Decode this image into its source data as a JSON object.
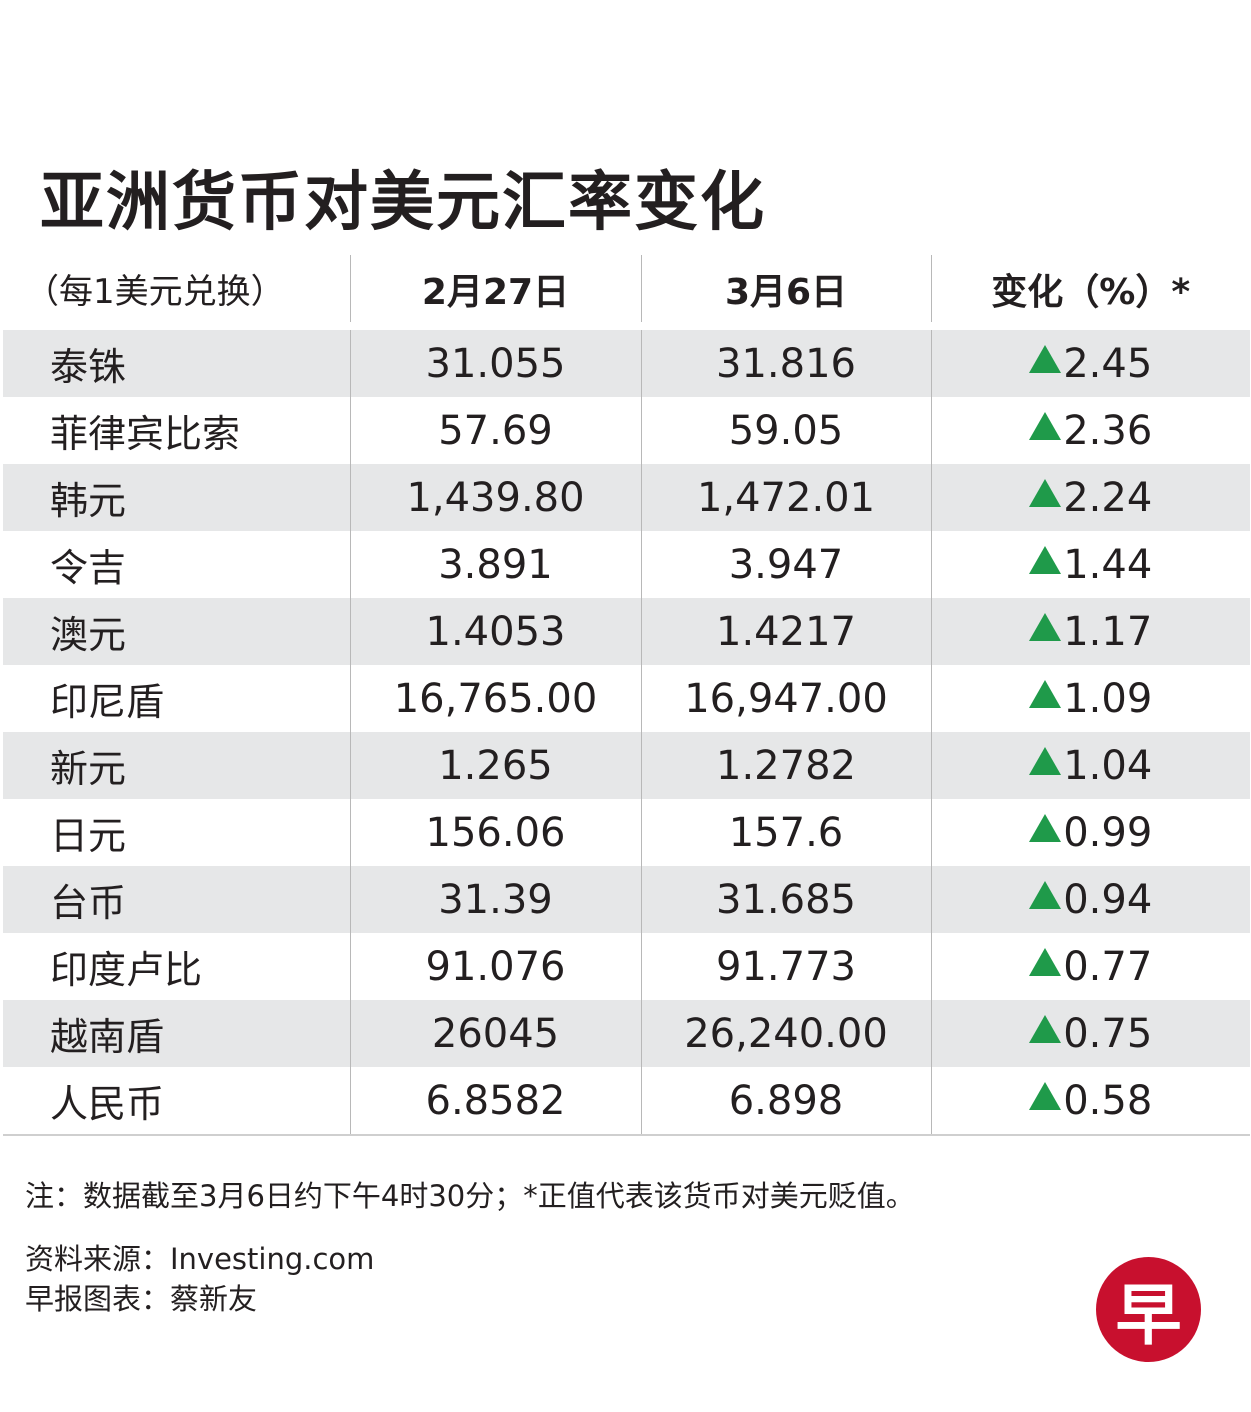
{
  "title": "亚洲货币对美元汇率变化",
  "chart_data": {
    "type": "table",
    "title": "亚洲货币对美元汇率变化",
    "columns": [
      "（每1美元兑换）",
      "2月27日",
      "3月6日",
      "变化（%）*"
    ],
    "rows": [
      {
        "currency": "泰铢",
        "feb27": "31.055",
        "mar6": "31.816",
        "change": "2.45",
        "direction": "up"
      },
      {
        "currency": "菲律宾比索",
        "feb27": "57.69",
        "mar6": "59.05",
        "change": "2.36",
        "direction": "up"
      },
      {
        "currency": "韩元",
        "feb27": "1,439.80",
        "mar6": "1,472.01",
        "change": "2.24",
        "direction": "up"
      },
      {
        "currency": "令吉",
        "feb27": "3.891",
        "mar6": "3.947",
        "change": "1.44",
        "direction": "up"
      },
      {
        "currency": "澳元",
        "feb27": "1.4053",
        "mar6": "1.4217",
        "change": "1.17",
        "direction": "up"
      },
      {
        "currency": "印尼盾",
        "feb27": "16,765.00",
        "mar6": "16,947.00",
        "change": "1.09",
        "direction": "up"
      },
      {
        "currency": "新元",
        "feb27": "1.265",
        "mar6": "1.2782",
        "change": "1.04",
        "direction": "up"
      },
      {
        "currency": "日元",
        "feb27": "156.06",
        "mar6": "157.6",
        "change": "0.99",
        "direction": "up"
      },
      {
        "currency": "台币",
        "feb27": "31.39",
        "mar6": "31.685",
        "change": "0.94",
        "direction": "up"
      },
      {
        "currency": "印度卢比",
        "feb27": "91.076",
        "mar6": "91.773",
        "change": "0.77",
        "direction": "up"
      },
      {
        "currency": "越南盾",
        "feb27": "26045",
        "mar6": "26,240.00",
        "change": "0.75",
        "direction": "up"
      },
      {
        "currency": "人民币",
        "feb27": "6.8582",
        "mar6": "6.898",
        "change": "0.58",
        "direction": "up"
      }
    ],
    "grid": true
  },
  "colors": {
    "up_triangle": "#1f9a4a",
    "stripe": "#e6e7e8",
    "logo": "#c8102e"
  },
  "footer": {
    "note": "注：数据截至3月6日约下午4时30分；*正值代表该货币对美元贬值。",
    "source": "资料来源：Investing.com",
    "graphic": "早报图表：蔡新友",
    "logo_text": "早"
  }
}
